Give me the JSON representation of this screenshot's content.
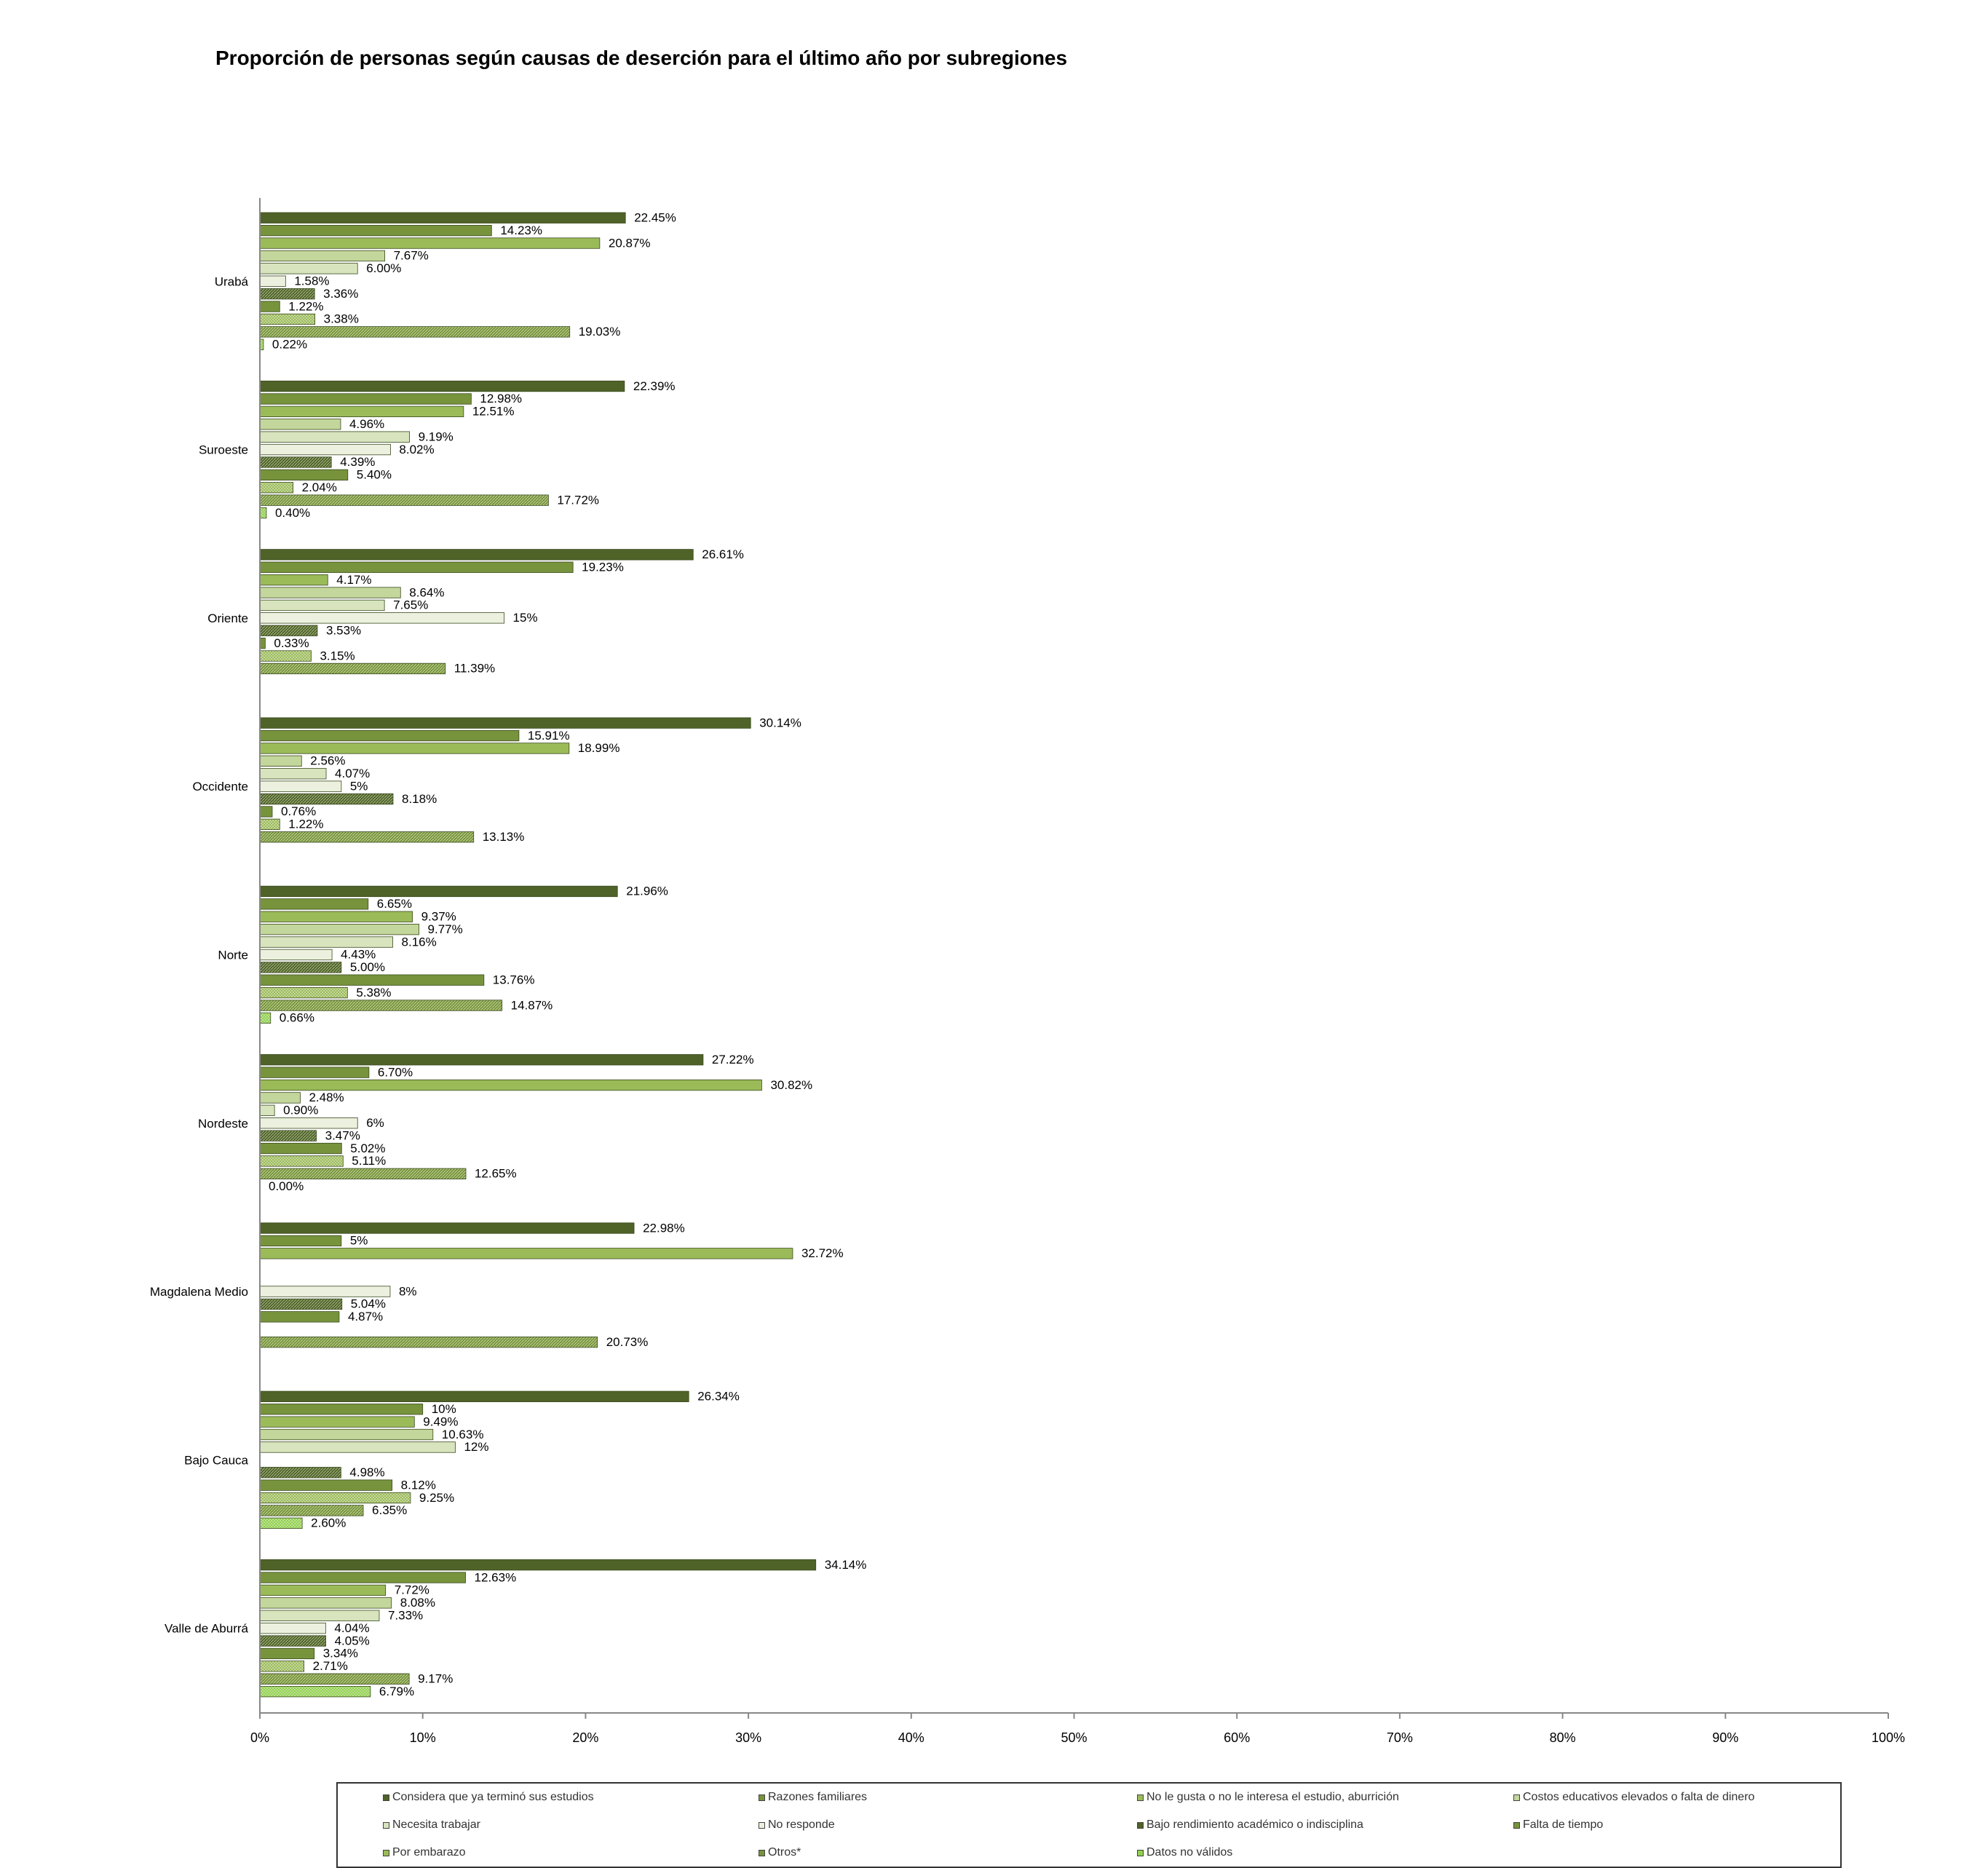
{
  "chart_data": {
    "type": "bar",
    "orientation": "horizontal",
    "title": "Proporción de personas según causas de deserción para el último año por subregiones",
    "xlabel": "",
    "ylabel": "",
    "xlim": [
      0,
      100
    ],
    "x_ticks": [
      "0%",
      "10%",
      "20%",
      "30%",
      "40%",
      "50%",
      "60%",
      "70%",
      "80%",
      "90%",
      "100%"
    ],
    "grid": false,
    "legend_position": "bottom",
    "categories": [
      "Urabá",
      "Suroeste",
      "Oriente",
      "Occidente",
      "Norte",
      "Nordeste",
      "Magdalena Medio",
      "Bajo Cauca",
      "Valle de Aburrá"
    ],
    "series": [
      {
        "name": "Considera que ya terminó sus estudios",
        "color": "#4f6228",
        "pattern": "solid",
        "values": [
          22.45,
          22.39,
          26.61,
          30.14,
          21.96,
          27.22,
          22.98,
          26.34,
          34.14
        ],
        "labels": [
          "22.45%",
          "22.39%",
          "26.61%",
          "30.14%",
          "21.96%",
          "27.22%",
          "22.98%",
          "26.34%",
          "34.14%"
        ]
      },
      {
        "name": "Razones  familiares",
        "color": "#77933c",
        "pattern": "solid",
        "values": [
          14.23,
          12.98,
          19.23,
          15.91,
          6.65,
          6.7,
          5,
          10,
          12.63
        ],
        "labels": [
          "14.23%",
          "12.98%",
          "19.23%",
          "15.91%",
          "6.65%",
          "6.70%",
          "5%",
          "10%",
          "12.63%"
        ]
      },
      {
        "name": "No le gusta o no le interesa el estudio, aburrición",
        "color": "#9bbb59",
        "pattern": "solid",
        "values": [
          20.87,
          12.51,
          4.17,
          18.99,
          9.37,
          30.82,
          32.72,
          9.49,
          7.72
        ],
        "labels": [
          "20.87%",
          "12.51%",
          "4.17%",
          "18.99%",
          "9.37%",
          "30.82%",
          "32.72%",
          "9.49%",
          "7.72%"
        ]
      },
      {
        "name": "Costos educativos  elevados  o falta de dinero",
        "color": "#c3d69b",
        "pattern": "solid",
        "values": [
          7.67,
          4.96,
          8.64,
          2.56,
          9.77,
          2.48,
          null,
          10.63,
          8.08
        ],
        "labels": [
          "7.67%",
          "4.96%",
          "8.64%",
          "2.56%",
          "9.77%",
          "2.48%",
          "",
          "10.63%",
          "8.08%"
        ]
      },
      {
        "name": "Necesita trabajar",
        "color": "#d7e4bd",
        "pattern": "solid",
        "values": [
          6.0,
          9.19,
          7.65,
          4.07,
          8.16,
          0.9,
          null,
          12,
          7.33
        ],
        "labels": [
          "6.00%",
          "9.19%",
          "7.65%",
          "4.07%",
          "8.16%",
          "0.90%",
          "",
          "12%",
          "7.33%"
        ]
      },
      {
        "name": "No responde",
        "color": "#ebf1de",
        "pattern": "solid",
        "values": [
          1.58,
          8.02,
          15,
          5,
          4.43,
          6,
          8,
          null,
          4.04
        ],
        "labels": [
          "1.58%",
          "8.02%",
          "15%",
          "5%",
          "4.43%",
          "6%",
          "8%",
          "",
          "4.04%"
        ]
      },
      {
        "name": "Bajo rendimiento  académico  o indisciplina",
        "color": "#4f6228",
        "pattern": "hatch",
        "values": [
          3.36,
          4.39,
          3.53,
          8.18,
          5.0,
          3.47,
          5.04,
          4.98,
          4.05
        ],
        "labels": [
          "3.36%",
          "4.39%",
          "3.53%",
          "8.18%",
          "5.00%",
          "3.47%",
          "5.04%",
          "4.98%",
          "4.05%"
        ]
      },
      {
        "name": "Falta de tiempo",
        "color": "#77933c",
        "pattern": "solid",
        "values": [
          1.22,
          5.4,
          0.33,
          0.76,
          13.76,
          5.02,
          4.87,
          8.12,
          3.34
        ],
        "labels": [
          "1.22%",
          "5.40%",
          "0.33%",
          "0.76%",
          "13.76%",
          "5.02%",
          "4.87%",
          "8.12%",
          "3.34%"
        ]
      },
      {
        "name": "Por embarazo",
        "color": "#9bbb59",
        "pattern": "dots",
        "values": [
          3.38,
          2.04,
          3.15,
          1.22,
          5.38,
          5.11,
          null,
          9.25,
          2.71
        ],
        "labels": [
          "3.38%",
          "2.04%",
          "3.15%",
          "1.22%",
          "5.38%",
          "5.11%",
          "",
          "9.25%",
          "2.71%"
        ]
      },
      {
        "name": "Otros*",
        "color": "#77933c",
        "pattern": "hatch",
        "values": [
          19.03,
          17.72,
          11.39,
          13.13,
          14.87,
          12.65,
          20.73,
          6.35,
          9.17
        ],
        "labels": [
          "19.03%",
          "17.72%",
          "11.39%",
          "13.13%",
          "14.87%",
          "12.65%",
          "20.73%",
          "6.35%",
          "9.17%"
        ]
      },
      {
        "name": "Datos no válidos",
        "color": "#92d050",
        "pattern": "dots",
        "values": [
          0.22,
          0.4,
          null,
          null,
          0.66,
          0.0,
          null,
          2.6,
          6.79
        ],
        "labels": [
          "0.22%",
          "0.40%",
          "",
          "",
          "0.66%",
          "0.00%",
          "",
          "2.60%",
          "6.79%"
        ]
      }
    ]
  }
}
